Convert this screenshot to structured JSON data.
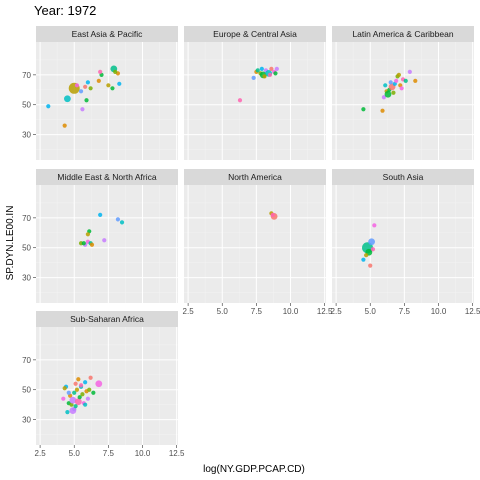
{
  "chart_data": {
    "type": "scatter",
    "title": "Year: 1972",
    "xlabel": "log(NY.GDP.PCAP.CD)",
    "ylabel": "SP.DYN.LE00.IN",
    "xlim": [
      2.2,
      12.6
    ],
    "ylim": [
      13,
      92
    ],
    "x_ticks": [
      2.5,
      5.0,
      7.5,
      10.0,
      12.5
    ],
    "x_tick_labels": [
      "2.5",
      "5.0",
      "7.5",
      "10.0",
      "12.5"
    ],
    "y_ticks": [
      30,
      50,
      70
    ],
    "y_tick_labels": [
      "30",
      "50",
      "70"
    ],
    "grid": true,
    "legend": "none",
    "colors": {
      "panel_bg": "#ebebeb",
      "strip_bg": "#d9d9d9",
      "grid_major": "#ffffff",
      "point_palette": [
        "#f8766d",
        "#de8c00",
        "#b79f00",
        "#7cae00",
        "#00ba38",
        "#00c08b",
        "#00bfc4",
        "#00b4f0",
        "#619cff",
        "#c77cff",
        "#f564e3",
        "#ff64b0"
      ]
    },
    "panels": [
      {
        "name": "East Asia & Pacific",
        "points": [
          {
            "x": 5.0,
            "y": 61,
            "size": 3,
            "color": 2
          },
          {
            "x": 4.5,
            "y": 54,
            "size": 2,
            "color": 6
          },
          {
            "x": 3.1,
            "y": 49,
            "size": 1,
            "color": 7
          },
          {
            "x": 4.3,
            "y": 36,
            "size": 1,
            "color": 1
          },
          {
            "x": 5.2,
            "y": 63,
            "size": 1,
            "color": 10
          },
          {
            "x": 5.5,
            "y": 59,
            "size": 1,
            "color": 8
          },
          {
            "x": 5.8,
            "y": 62,
            "size": 1,
            "color": 0
          },
          {
            "x": 6.0,
            "y": 65,
            "size": 1,
            "color": 7
          },
          {
            "x": 6.8,
            "y": 66,
            "size": 1,
            "color": 1
          },
          {
            "x": 7.0,
            "y": 70,
            "size": 1,
            "color": 4
          },
          {
            "x": 7.5,
            "y": 63,
            "size": 1,
            "color": 2
          },
          {
            "x": 7.9,
            "y": 74,
            "size": 2,
            "color": 5
          },
          {
            "x": 8.2,
            "y": 71,
            "size": 1,
            "color": 1
          },
          {
            "x": 8.3,
            "y": 64,
            "size": 1,
            "color": 7
          },
          {
            "x": 6.2,
            "y": 61,
            "size": 1,
            "color": 3
          },
          {
            "x": 5.9,
            "y": 53,
            "size": 1,
            "color": 4
          },
          {
            "x": 5.6,
            "y": 47,
            "size": 1,
            "color": 9
          },
          {
            "x": 7.8,
            "y": 61,
            "size": 1,
            "color": 4
          },
          {
            "x": 6.9,
            "y": 72,
            "size": 1,
            "color": 11
          },
          {
            "x": 8.0,
            "y": 72,
            "size": 1,
            "color": 3
          }
        ]
      },
      {
        "name": "Europe & Central Asia",
        "points": [
          {
            "x": 6.3,
            "y": 53,
            "size": 1,
            "color": 11
          },
          {
            "x": 7.3,
            "y": 68,
            "size": 1,
            "color": 8
          },
          {
            "x": 7.5,
            "y": 72,
            "size": 1,
            "color": 1
          },
          {
            "x": 7.8,
            "y": 71,
            "size": 1,
            "color": 3
          },
          {
            "x": 8.0,
            "y": 70,
            "size": 2,
            "color": 4
          },
          {
            "x": 8.2,
            "y": 73,
            "size": 1,
            "color": 9
          },
          {
            "x": 8.4,
            "y": 71,
            "size": 2,
            "color": 6
          },
          {
            "x": 8.6,
            "y": 74,
            "size": 1,
            "color": 0
          },
          {
            "x": 8.8,
            "y": 72,
            "size": 1,
            "color": 10
          },
          {
            "x": 7.6,
            "y": 73,
            "size": 1,
            "color": 5
          },
          {
            "x": 8.1,
            "y": 69,
            "size": 1,
            "color": 2
          },
          {
            "x": 8.9,
            "y": 71,
            "size": 1,
            "color": 4
          },
          {
            "x": 7.9,
            "y": 74,
            "size": 1,
            "color": 7
          },
          {
            "x": 8.5,
            "y": 70,
            "size": 1,
            "color": 11
          },
          {
            "x": 9.0,
            "y": 74,
            "size": 1,
            "color": 9
          }
        ]
      },
      {
        "name": "Latin America & Caribbean",
        "points": [
          {
            "x": 5.9,
            "y": 46,
            "size": 1,
            "color": 1
          },
          {
            "x": 4.5,
            "y": 47,
            "size": 1,
            "color": 4
          },
          {
            "x": 6.0,
            "y": 55,
            "size": 1,
            "color": 9
          },
          {
            "x": 6.2,
            "y": 59,
            "size": 1,
            "color": 2
          },
          {
            "x": 6.4,
            "y": 60,
            "size": 1,
            "color": 4
          },
          {
            "x": 6.6,
            "y": 62,
            "size": 2,
            "color": 0
          },
          {
            "x": 6.8,
            "y": 64,
            "size": 1,
            "color": 7
          },
          {
            "x": 6.9,
            "y": 66,
            "size": 1,
            "color": 10
          },
          {
            "x": 7.0,
            "y": 69,
            "size": 1,
            "color": 3
          },
          {
            "x": 7.2,
            "y": 63,
            "size": 1,
            "color": 1
          },
          {
            "x": 7.4,
            "y": 67,
            "size": 1,
            "color": 11
          },
          {
            "x": 7.6,
            "y": 66,
            "size": 1,
            "color": 5
          },
          {
            "x": 7.9,
            "y": 72,
            "size": 1,
            "color": 9
          },
          {
            "x": 8.3,
            "y": 66,
            "size": 1,
            "color": 1
          },
          {
            "x": 6.5,
            "y": 65,
            "size": 1,
            "color": 8
          },
          {
            "x": 6.1,
            "y": 63,
            "size": 1,
            "color": 6
          },
          {
            "x": 6.7,
            "y": 58,
            "size": 1,
            "color": 3
          },
          {
            "x": 7.1,
            "y": 70,
            "size": 1,
            "color": 2
          },
          {
            "x": 6.3,
            "y": 57,
            "size": 2,
            "color": 4
          },
          {
            "x": 7.3,
            "y": 61,
            "size": 1,
            "color": 10
          }
        ]
      },
      {
        "name": "Middle East & North Africa",
        "points": [
          {
            "x": 5.5,
            "y": 53,
            "size": 1,
            "color": 3
          },
          {
            "x": 5.8,
            "y": 52,
            "size": 1,
            "color": 9
          },
          {
            "x": 6.0,
            "y": 54,
            "size": 1,
            "color": 10
          },
          {
            "x": 6.1,
            "y": 61,
            "size": 1,
            "color": 4
          },
          {
            "x": 6.2,
            "y": 53,
            "size": 1,
            "color": 5
          },
          {
            "x": 6.3,
            "y": 52,
            "size": 1,
            "color": 1
          },
          {
            "x": 6.9,
            "y": 72,
            "size": 1,
            "color": 7
          },
          {
            "x": 7.2,
            "y": 55,
            "size": 1,
            "color": 9
          },
          {
            "x": 8.2,
            "y": 69,
            "size": 1,
            "color": 8
          },
          {
            "x": 8.5,
            "y": 67,
            "size": 1,
            "color": 6
          },
          {
            "x": 6.0,
            "y": 59,
            "size": 1,
            "color": 2
          },
          {
            "x": 5.7,
            "y": 53,
            "size": 1,
            "color": 4
          }
        ]
      },
      {
        "name": "North America",
        "points": [
          {
            "x": 8.6,
            "y": 73,
            "size": 1,
            "color": 2
          },
          {
            "x": 8.8,
            "y": 71,
            "size": 2,
            "color": 0
          },
          {
            "x": 8.7,
            "y": 72,
            "size": 1,
            "color": 11
          }
        ]
      },
      {
        "name": "South Asia",
        "points": [
          {
            "x": 4.5,
            "y": 42,
            "size": 1,
            "color": 7
          },
          {
            "x": 4.8,
            "y": 50,
            "size": 3,
            "color": 5
          },
          {
            "x": 4.9,
            "y": 47,
            "size": 2,
            "color": 4
          },
          {
            "x": 5.1,
            "y": 54,
            "size": 2,
            "color": 8
          },
          {
            "x": 5.0,
            "y": 38,
            "size": 1,
            "color": 0
          },
          {
            "x": 5.3,
            "y": 65,
            "size": 1,
            "color": 10
          },
          {
            "x": 4.7,
            "y": 45,
            "size": 1,
            "color": 2
          },
          {
            "x": 5.2,
            "y": 49,
            "size": 1,
            "color": 11
          }
        ]
      },
      {
        "name": "Sub-Saharan Africa",
        "points": [
          {
            "x": 4.2,
            "y": 44,
            "size": 1,
            "color": 10
          },
          {
            "x": 4.4,
            "y": 52,
            "size": 1,
            "color": 7
          },
          {
            "x": 4.5,
            "y": 35,
            "size": 1,
            "color": 6
          },
          {
            "x": 4.6,
            "y": 41,
            "size": 1,
            "color": 4
          },
          {
            "x": 4.7,
            "y": 46,
            "size": 1,
            "color": 1
          },
          {
            "x": 4.8,
            "y": 40,
            "size": 1,
            "color": 3
          },
          {
            "x": 4.9,
            "y": 43,
            "size": 2,
            "color": 9
          },
          {
            "x": 5.0,
            "y": 37,
            "size": 1,
            "color": 8
          },
          {
            "x": 5.0,
            "y": 48,
            "size": 1,
            "color": 5
          },
          {
            "x": 5.1,
            "y": 54,
            "size": 1,
            "color": 0
          },
          {
            "x": 5.2,
            "y": 50,
            "size": 1,
            "color": 2
          },
          {
            "x": 5.3,
            "y": 42,
            "size": 2,
            "color": 11
          },
          {
            "x": 5.4,
            "y": 45,
            "size": 1,
            "color": 4
          },
          {
            "x": 5.5,
            "y": 52,
            "size": 1,
            "color": 6
          },
          {
            "x": 5.6,
            "y": 47,
            "size": 1,
            "color": 3
          },
          {
            "x": 5.7,
            "y": 41,
            "size": 1,
            "color": 10
          },
          {
            "x": 5.8,
            "y": 55,
            "size": 1,
            "color": 7
          },
          {
            "x": 5.9,
            "y": 49,
            "size": 1,
            "color": 1
          },
          {
            "x": 6.0,
            "y": 44,
            "size": 1,
            "color": 9
          },
          {
            "x": 6.2,
            "y": 58,
            "size": 1,
            "color": 0
          },
          {
            "x": 6.4,
            "y": 48,
            "size": 1,
            "color": 4
          },
          {
            "x": 6.8,
            "y": 54,
            "size": 2,
            "color": 10
          },
          {
            "x": 4.3,
            "y": 51,
            "size": 1,
            "color": 2
          },
          {
            "x": 5.1,
            "y": 39,
            "size": 1,
            "color": 5
          },
          {
            "x": 4.6,
            "y": 48,
            "size": 1,
            "color": 8
          },
          {
            "x": 5.5,
            "y": 53,
            "size": 1,
            "color": 11
          },
          {
            "x": 4.9,
            "y": 36,
            "size": 2,
            "color": 9
          },
          {
            "x": 6.1,
            "y": 50,
            "size": 1,
            "color": 3
          },
          {
            "x": 5.8,
            "y": 40,
            "size": 1,
            "color": 6
          },
          {
            "x": 5.3,
            "y": 57,
            "size": 1,
            "color": 1
          }
        ]
      }
    ]
  }
}
